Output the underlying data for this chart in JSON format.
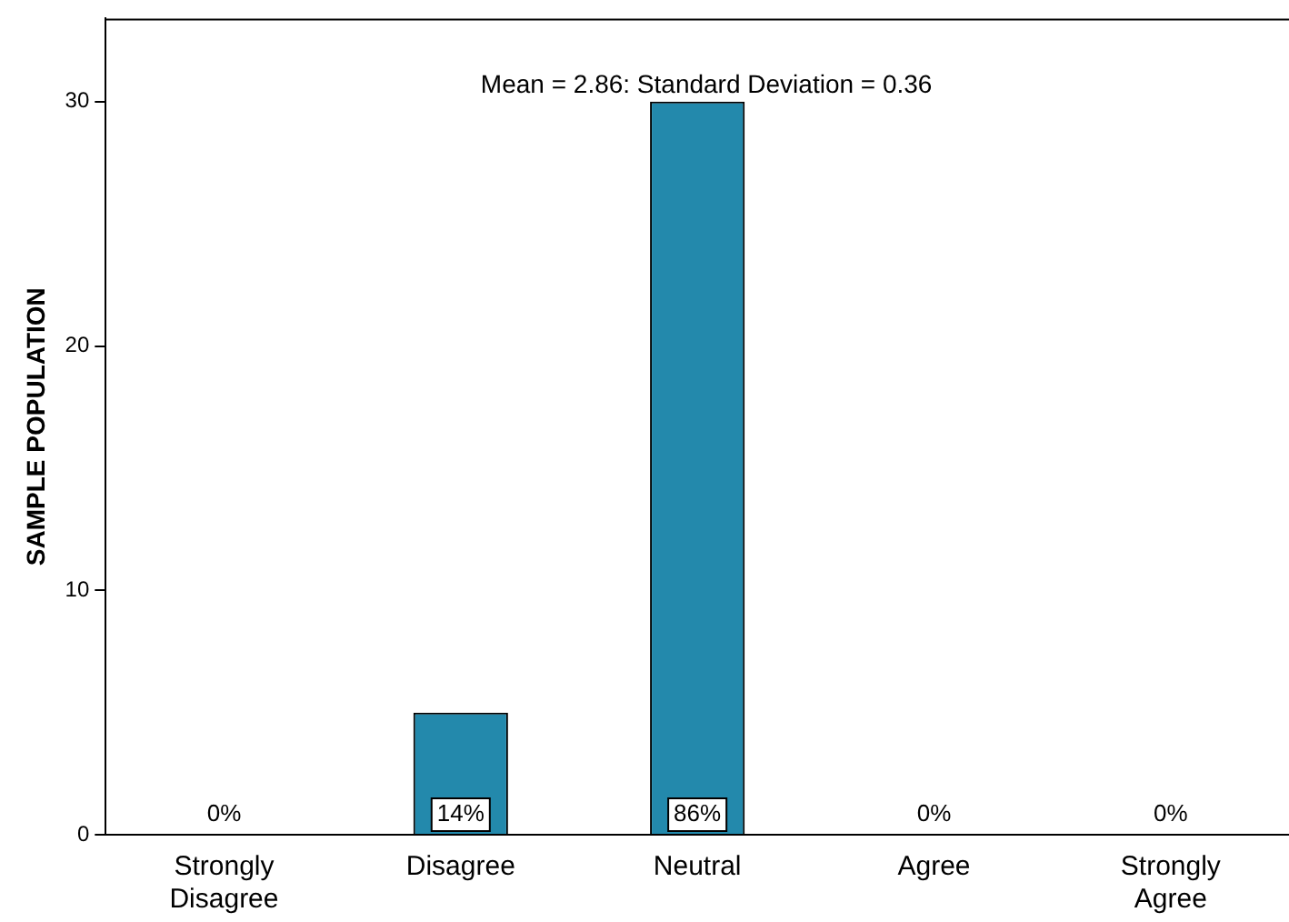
{
  "chart_data": {
    "type": "bar",
    "ylabel": "SAMPLE POPULATION",
    "annotations": [
      "Mean = 2.86: Standard Deviation = 0.36",
      {
        "text": "0%",
        "x": "Strongly Disagree",
        "y": 0
      },
      {
        "text": "14%",
        "x": "Disagree",
        "y": 0
      },
      {
        "text": "86%",
        "x": "Neutral",
        "y": 0
      },
      {
        "text": "0%",
        "x": "Agree",
        "y": 0
      },
      {
        "text": "0%",
        "x": "Strongly Agree",
        "y": 0
      }
    ],
    "categories": [
      "Strongly Disagree",
      "Disagree",
      "Neutral",
      "Agree",
      "Strongly Agree"
    ],
    "values": [
      0,
      5,
      30,
      0,
      0
    ],
    "color": "#2389ac",
    "ylim": [
      0,
      33.4
    ],
    "yticks": [
      0,
      10,
      20,
      30
    ],
    "grid": false,
    "legend": false
  }
}
